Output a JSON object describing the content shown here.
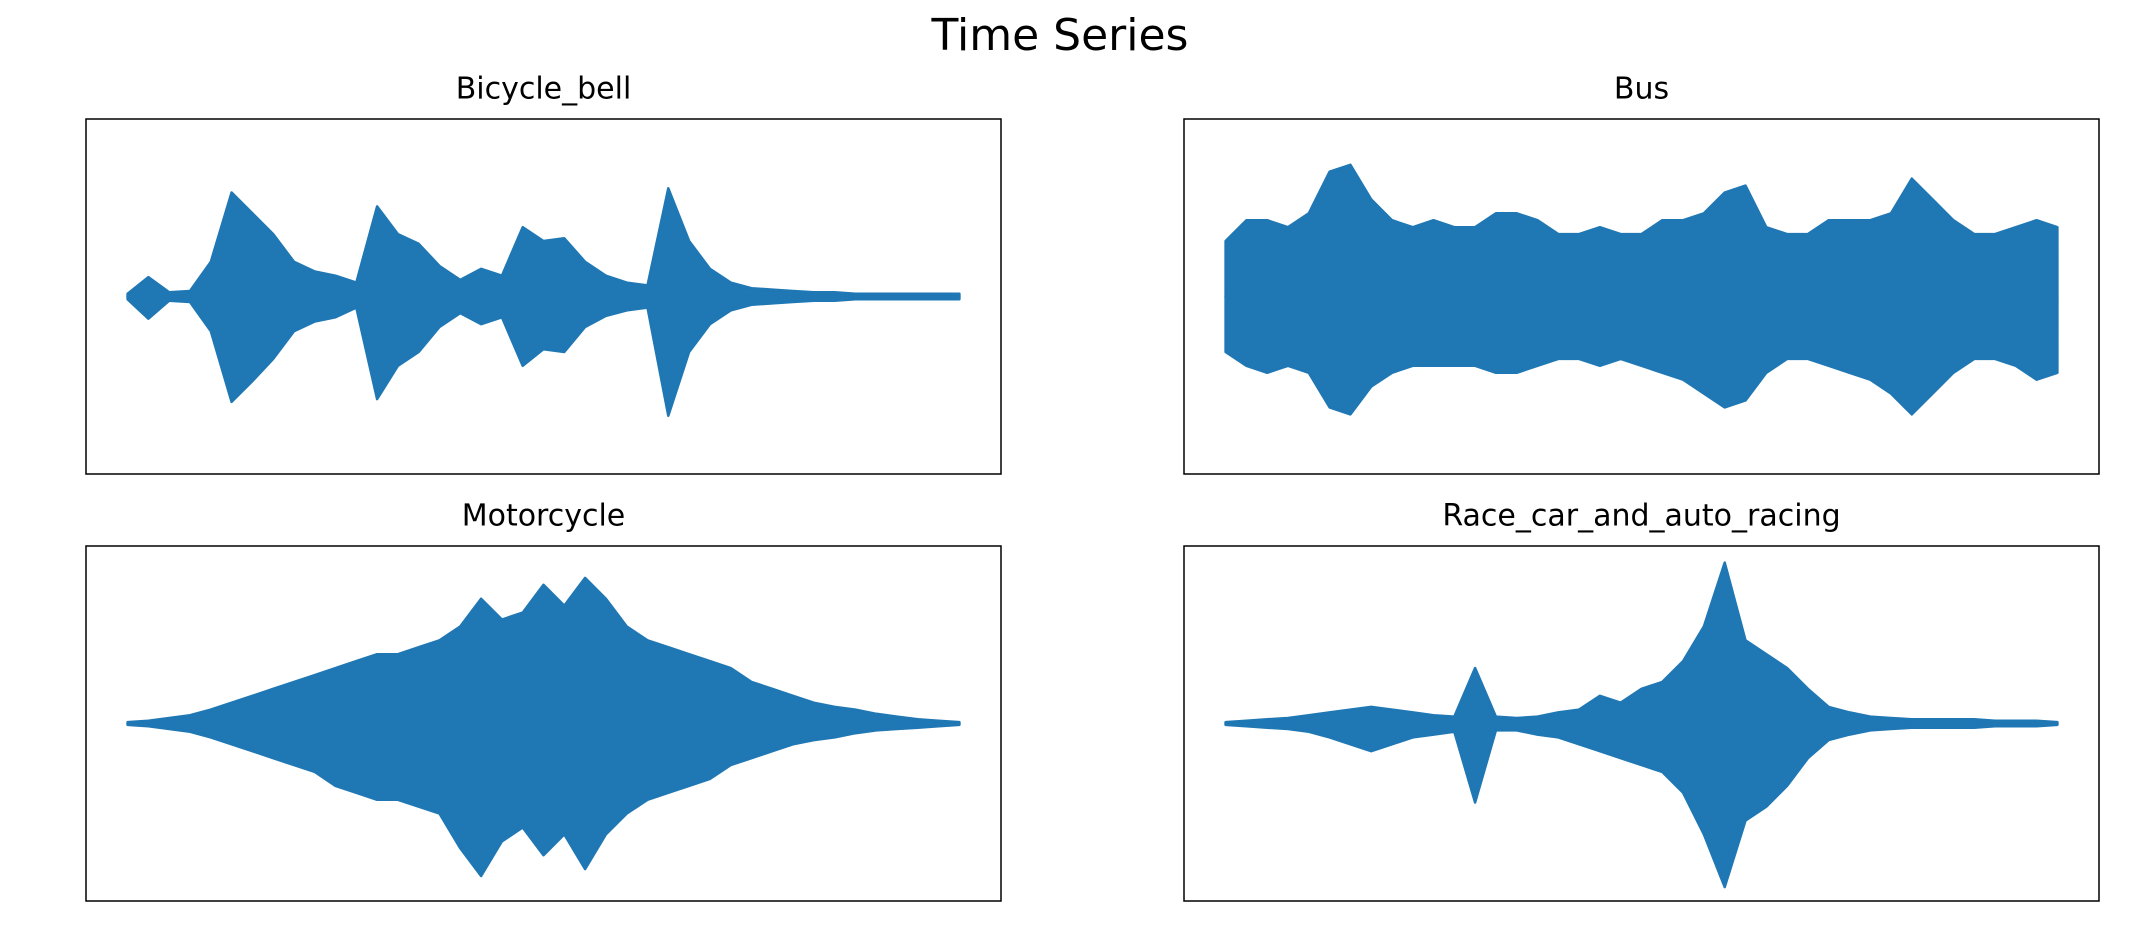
{
  "title": "Time Series",
  "chart_data": [
    {
      "type": "area",
      "title": "Bicycle_bell",
      "x": [
        0,
        1,
        2,
        3,
        4,
        5,
        6,
        7,
        8,
        9,
        10,
        11,
        12,
        13,
        14,
        15,
        16,
        17,
        18,
        19,
        20,
        21,
        22,
        23,
        24,
        25,
        26,
        27,
        28,
        29,
        30,
        31,
        32,
        33,
        34,
        35,
        36,
        37,
        38,
        39,
        40
      ],
      "xlim": [
        -2,
        42
      ],
      "ylim": [
        -128,
        128
      ],
      "series": [
        {
          "color": "#1f77b4",
          "values": [
            2,
            14,
            3,
            4,
            25,
            75,
            60,
            45,
            25,
            18,
            15,
            10,
            65,
            45,
            38,
            22,
            12,
            20,
            15,
            50,
            40,
            42,
            25,
            15,
            10,
            8,
            78,
            40,
            20,
            10,
            6,
            5,
            4,
            3,
            3,
            2,
            2,
            2,
            2,
            2,
            2
          ]
        },
        {
          "color": "#1f77b4",
          "values": [
            -2,
            -16,
            -3,
            -4,
            -25,
            -76,
            -61,
            -45,
            -25,
            -18,
            -15,
            -8,
            -74,
            -50,
            -40,
            -22,
            -12,
            -20,
            -15,
            -50,
            -38,
            -40,
            -22,
            -14,
            -10,
            -8,
            -86,
            -40,
            -20,
            -10,
            -6,
            -5,
            -4,
            -3,
            -3,
            -2,
            -2,
            -2,
            -2,
            -2,
            -2
          ]
        }
      ]
    },
    {
      "type": "area",
      "title": "Bus",
      "x": [
        0,
        1,
        2,
        3,
        4,
        5,
        6,
        7,
        8,
        9,
        10,
        11,
        12,
        13,
        14,
        15,
        16,
        17,
        18,
        19,
        20,
        21,
        22,
        23,
        24,
        25,
        26,
        27,
        28,
        29,
        30,
        31,
        32,
        33,
        34,
        35,
        36,
        37,
        38,
        39,
        40
      ],
      "xlim": [
        -2,
        42
      ],
      "ylim": [
        -128,
        128
      ],
      "series": [
        {
          "color": "#1f77b4",
          "values": [
            40,
            55,
            55,
            50,
            60,
            90,
            95,
            70,
            55,
            50,
            55,
            50,
            50,
            60,
            60,
            55,
            45,
            45,
            50,
            45,
            45,
            55,
            55,
            60,
            75,
            80,
            50,
            45,
            45,
            55,
            55,
            55,
            60,
            85,
            70,
            55,
            45,
            45,
            50,
            55,
            50
          ]
        },
        {
          "color": "#1f77b4",
          "values": [
            -40,
            -50,
            -55,
            -50,
            -55,
            -80,
            -85,
            -65,
            -55,
            -50,
            -50,
            -50,
            -50,
            -55,
            -55,
            -50,
            -45,
            -45,
            -50,
            -45,
            -50,
            -55,
            -60,
            -70,
            -80,
            -75,
            -55,
            -45,
            -45,
            -50,
            -55,
            -60,
            -70,
            -85,
            -70,
            -55,
            -45,
            -45,
            -50,
            -60,
            -55
          ]
        }
      ]
    },
    {
      "type": "area",
      "title": "Motorcycle",
      "x": [
        0,
        1,
        2,
        3,
        4,
        5,
        6,
        7,
        8,
        9,
        10,
        11,
        12,
        13,
        14,
        15,
        16,
        17,
        18,
        19,
        20,
        21,
        22,
        23,
        24,
        25,
        26,
        27,
        28,
        29,
        30,
        31,
        32,
        33,
        34,
        35,
        36,
        37,
        38,
        39,
        40
      ],
      "xlim": [
        -2,
        42
      ],
      "ylim": [
        -128,
        128
      ],
      "series": [
        {
          "color": "#1f77b4",
          "values": [
            1,
            2,
            4,
            6,
            10,
            15,
            20,
            25,
            30,
            35,
            40,
            45,
            50,
            50,
            55,
            60,
            70,
            90,
            75,
            80,
            100,
            85,
            105,
            90,
            70,
            60,
            55,
            50,
            45,
            40,
            30,
            25,
            20,
            15,
            12,
            10,
            7,
            5,
            3,
            2,
            1
          ]
        },
        {
          "color": "#1f77b4",
          "values": [
            -1,
            -2,
            -4,
            -6,
            -10,
            -15,
            -20,
            -25,
            -30,
            -35,
            -45,
            -50,
            -55,
            -55,
            -60,
            -65,
            -90,
            -110,
            -85,
            -75,
            -95,
            -80,
            -105,
            -80,
            -65,
            -55,
            -50,
            -45,
            -40,
            -30,
            -25,
            -20,
            -15,
            -12,
            -10,
            -7,
            -5,
            -4,
            -3,
            -2,
            -1
          ]
        }
      ]
    },
    {
      "type": "area",
      "title": "Race_car_and_auto_racing",
      "x": [
        0,
        1,
        2,
        3,
        4,
        5,
        6,
        7,
        8,
        9,
        10,
        11,
        12,
        13,
        14,
        15,
        16,
        17,
        18,
        19,
        20,
        21,
        22,
        23,
        24,
        25,
        26,
        27,
        28,
        29,
        30,
        31,
        32,
        33,
        34,
        35,
        36,
        37,
        38,
        39,
        40
      ],
      "xlim": [
        -2,
        42
      ],
      "ylim": [
        -128,
        128
      ],
      "series": [
        {
          "color": "#1f77b4",
          "values": [
            1,
            2,
            3,
            4,
            6,
            8,
            10,
            12,
            10,
            8,
            6,
            5,
            40,
            5,
            4,
            5,
            8,
            10,
            20,
            15,
            25,
            30,
            45,
            70,
            116,
            60,
            50,
            40,
            25,
            12,
            8,
            5,
            4,
            3,
            3,
            3,
            3,
            2,
            2,
            2,
            1
          ]
        },
        {
          "color": "#1f77b4",
          "values": [
            -1,
            -2,
            -3,
            -4,
            -6,
            -10,
            -15,
            -20,
            -15,
            -10,
            -8,
            -6,
            -57,
            -5,
            -5,
            -8,
            -10,
            -15,
            -20,
            -25,
            -30,
            -35,
            -50,
            -80,
            -118,
            -70,
            -60,
            -45,
            -25,
            -12,
            -8,
            -5,
            -4,
            -3,
            -3,
            -3,
            -3,
            -2,
            -2,
            -2,
            -1
          ]
        }
      ]
    }
  ]
}
